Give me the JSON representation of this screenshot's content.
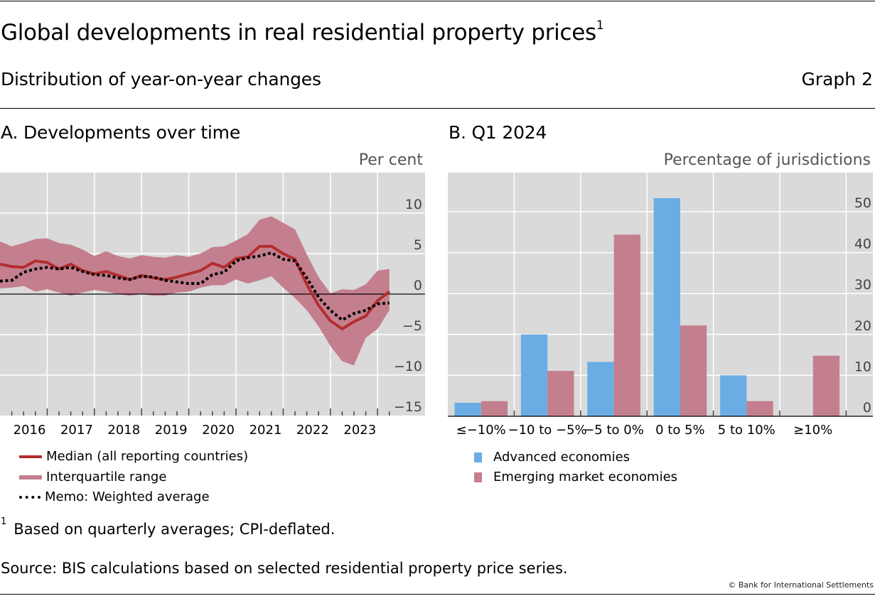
{
  "header": {
    "title": "Global developments in real residential property prices",
    "title_footnote_marker": "1",
    "subtitle": "Distribution of year-on-year changes",
    "graph_number": "Graph 2"
  },
  "colors": {
    "median": "#B22E2E",
    "interquartile": "#C47F8F",
    "weighted": "#000000",
    "advanced": "#6AADE4",
    "emerging": "#C47F8F",
    "plot_background": "#DADADA",
    "gridline": "#FFFFFF"
  },
  "legend_a": [
    {
      "label": "Median (all reporting countries)",
      "kind": "line",
      "color_key": "median"
    },
    {
      "label": "Interquartile range",
      "kind": "band",
      "color_key": "interquartile"
    },
    {
      "label": "Memo: Weighted average",
      "kind": "dots",
      "color_key": "weighted"
    }
  ],
  "legend_b": [
    {
      "label": "Advanced economies",
      "color_key": "advanced"
    },
    {
      "label": "Emerging market economies",
      "color_key": "emerging"
    }
  ],
  "footnote": {
    "marker": "1",
    "text": "Based on quarterly averages; CPI-deflated."
  },
  "source": "Source: BIS calculations based on selected residential property price series.",
  "copyright": "© Bank for International Settlements",
  "chart_data": [
    {
      "type": "line",
      "title": "A. Developments over time",
      "ylabel": "Per cent",
      "xlabel": "",
      "ylim": [
        -15,
        13
      ],
      "yticks": [
        10,
        5,
        0,
        -5,
        -10,
        -15
      ],
      "ytick_labels": [
        "10",
        "5",
        "0",
        "−5",
        "−10",
        "−15"
      ],
      "y_axis_side": "right",
      "x_start": "2015-Q4",
      "x_end": "2024-Q1",
      "frequency": "quarterly",
      "xtick_labels": [
        "2016",
        "2017",
        "2018",
        "2019",
        "2020",
        "2021",
        "2022",
        "2023"
      ],
      "grid": true,
      "legend_position": "bottom",
      "series": [
        {
          "name": "Median (all reporting countries)",
          "kind": "line",
          "values": [
            3.7,
            3.4,
            3.3,
            4.1,
            3.9,
            3.1,
            3.7,
            2.9,
            2.5,
            2.8,
            2.3,
            1.8,
            2.3,
            2.0,
            1.8,
            2.1,
            2.5,
            2.9,
            3.8,
            3.3,
            4.4,
            4.6,
            5.9,
            5.9,
            5.0,
            4.3,
            1.2,
            -1.4,
            -3.3,
            -4.3,
            -3.4,
            -2.7,
            -0.8,
            0.3
          ]
        },
        {
          "name": "Interquartile range",
          "kind": "band",
          "upper": [
            6.5,
            5.9,
            6.3,
            6.8,
            6.9,
            6.3,
            6.1,
            5.5,
            4.7,
            5.3,
            4.7,
            4.4,
            4.8,
            4.6,
            4.5,
            4.8,
            4.6,
            5.0,
            5.8,
            5.9,
            6.6,
            7.4,
            9.2,
            9.6,
            8.8,
            8.0,
            4.9,
            2.1,
            0.1,
            0.6,
            0.5,
            1.2,
            2.9,
            3.1
          ],
          "lower": [
            0.7,
            0.8,
            1.0,
            0.3,
            0.6,
            0.2,
            -0.2,
            0.2,
            0.5,
            0.3,
            0.0,
            -0.2,
            0.0,
            -0.2,
            -0.2,
            0.2,
            0.3,
            0.8,
            1.1,
            1.1,
            1.8,
            1.3,
            1.7,
            2.2,
            0.8,
            -0.5,
            -2.0,
            -4.0,
            -6.4,
            -8.3,
            -8.8,
            -5.4,
            -4.3,
            -2.0
          ]
        },
        {
          "name": "Memo: Weighted average",
          "kind": "dotted",
          "values": [
            1.6,
            1.7,
            2.7,
            3.1,
            3.3,
            3.1,
            3.3,
            2.8,
            2.4,
            2.3,
            2.0,
            1.8,
            2.2,
            2.1,
            1.7,
            1.5,
            1.3,
            1.3,
            2.4,
            2.7,
            4.1,
            4.5,
            4.7,
            5.1,
            4.3,
            4.1,
            2.0,
            -0.4,
            -2.0,
            -3.2,
            -2.4,
            -2.0,
            -1.2,
            -1.1
          ]
        }
      ]
    },
    {
      "type": "bar",
      "title": "B. Q1 2024",
      "ylabel": "Percentage of jurisdictions",
      "xlabel": "",
      "ylim": [
        0,
        55
      ],
      "yticks": [
        0,
        10,
        20,
        30,
        40,
        50
      ],
      "y_axis_side": "right",
      "categories": [
        "≤−10%",
        "−10 to −5%",
        "−5 to 0%",
        "0 to 5%",
        "5 to 10%",
        "≥10%"
      ],
      "grid": true,
      "legend_position": "bottom",
      "series": [
        {
          "name": "Advanced economies",
          "values": [
            3.3,
            20.0,
            13.3,
            53.3,
            10.0,
            0.0
          ]
        },
        {
          "name": "Emerging market economies",
          "values": [
            3.7,
            11.1,
            44.4,
            22.2,
            3.7,
            14.8
          ]
        }
      ]
    }
  ]
}
